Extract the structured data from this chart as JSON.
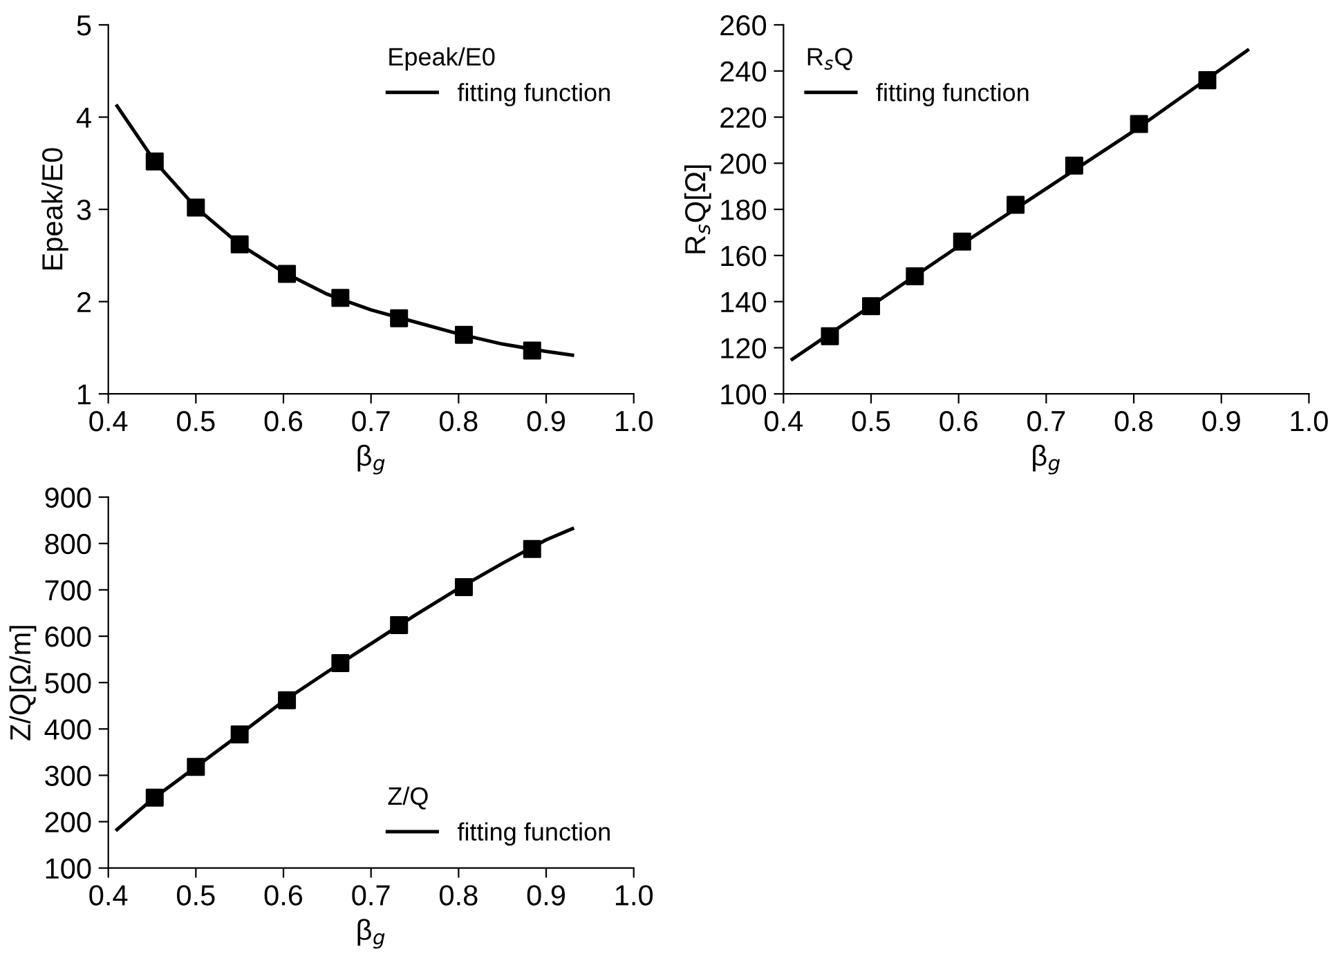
{
  "chart_data": [
    {
      "type": "scatter",
      "xlabel": "β$_{g}$",
      "ylabel": "Epeak/E0",
      "legend_title": "Epeak/E0",
      "legend": "top right",
      "marker": "square",
      "grid": false,
      "xlim": [
        0.4,
        1.0
      ],
      "xticks": [
        {
          "value": 0.4,
          "label": "0.4"
        },
        {
          "value": 0.5,
          "label": "0.5"
        },
        {
          "value": 0.6,
          "label": "0.6"
        },
        {
          "value": 0.7,
          "label": "0.7"
        },
        {
          "value": 0.8,
          "label": "0.8"
        },
        {
          "value": 0.9,
          "label": "0.9"
        },
        {
          "value": 1.0,
          "label": "1.0"
        }
      ],
      "ylim": [
        1,
        5
      ],
      "yticks": [
        1,
        2,
        3,
        4,
        5
      ],
      "series": [
        {
          "color": "#000000",
          "x": [
            0.453,
            0.5,
            0.55,
            0.604,
            0.665,
            0.732,
            0.806,
            0.884
          ],
          "values": [
            3.52,
            3.02,
            2.62,
            2.3,
            2.04,
            1.82,
            1.64,
            1.47
          ]
        },
        {
          "type": "line",
          "name": "fitting function",
          "color": "#000000",
          "marker": "none",
          "line_style": "solid",
          "x": [
            0.41,
            0.453,
            0.5,
            0.55,
            0.6,
            0.65,
            0.7,
            0.75,
            0.8,
            0.85,
            0.9,
            0.93
          ],
          "values": [
            4.12,
            3.52,
            3.02,
            2.62,
            2.32,
            2.08,
            1.91,
            1.78,
            1.65,
            1.54,
            1.46,
            1.42
          ]
        }
      ]
    },
    {
      "type": "scatter",
      "xlabel": "β$_{g}$",
      "ylabel": "R$_{s}$Q[Ω]",
      "legend_title": "R$_{s}$Q",
      "legend": "top left",
      "marker": "square",
      "grid": false,
      "xlim": [
        0.4,
        1.0
      ],
      "xticks": [
        {
          "value": 0.4,
          "label": "0.4"
        },
        {
          "value": 0.5,
          "label": "0.5"
        },
        {
          "value": 0.6,
          "label": "0.6"
        },
        {
          "value": 0.7,
          "label": "0.7"
        },
        {
          "value": 0.8,
          "label": "0.8"
        },
        {
          "value": 0.9,
          "label": "0.9"
        },
        {
          "value": 1.0,
          "label": "1.0"
        }
      ],
      "ylim": [
        100,
        260
      ],
      "yticks": [
        100,
        120,
        140,
        160,
        180,
        200,
        220,
        240,
        260
      ],
      "series": [
        {
          "color": "#000000",
          "x": [
            0.453,
            0.5,
            0.55,
            0.604,
            0.665,
            0.732,
            0.806,
            0.884
          ],
          "values": [
            125,
            138,
            151,
            166,
            182,
            199,
            217,
            236
          ]
        },
        {
          "type": "line",
          "name": "fitting function",
          "color": "#000000",
          "marker": "none",
          "line_style": "solid",
          "x": [
            0.41,
            0.6,
            0.8,
            0.93
          ],
          "values": [
            115,
            164,
            214,
            249
          ]
        }
      ]
    },
    {
      "type": "scatter",
      "xlabel": "β$_{g}$",
      "ylabel": "Z/Q[Ω/m]",
      "legend_title": "Z/Q",
      "legend": "bottom right",
      "marker": "square",
      "grid": false,
      "xlim": [
        0.4,
        1.0
      ],
      "xticks": [
        {
          "value": 0.4,
          "label": "0.4"
        },
        {
          "value": 0.5,
          "label": "0.5"
        },
        {
          "value": 0.6,
          "label": "0.6"
        },
        {
          "value": 0.7,
          "label": "0.7"
        },
        {
          "value": 0.8,
          "label": "0.8"
        },
        {
          "value": 0.9,
          "label": "0.9"
        },
        {
          "value": 1.0,
          "label": "1.0"
        }
      ],
      "ylim": [
        100,
        900
      ],
      "yticks": [
        100,
        200,
        300,
        400,
        500,
        600,
        700,
        800,
        900
      ],
      "series": [
        {
          "color": "#000000",
          "x": [
            0.453,
            0.5,
            0.55,
            0.604,
            0.665,
            0.732,
            0.806,
            0.884
          ],
          "values": [
            252,
            318,
            388,
            462,
            542,
            624,
            706,
            788
          ]
        },
        {
          "type": "line",
          "name": "fitting function",
          "color": "#000000",
          "marker": "none",
          "line_style": "solid",
          "x": [
            0.41,
            0.45,
            0.5,
            0.55,
            0.6,
            0.65,
            0.7,
            0.75,
            0.8,
            0.85,
            0.9,
            0.93
          ],
          "values": [
            183,
            248,
            318,
            388,
            460,
            523,
            584,
            645,
            703,
            757,
            808,
            832
          ]
        }
      ]
    }
  ]
}
